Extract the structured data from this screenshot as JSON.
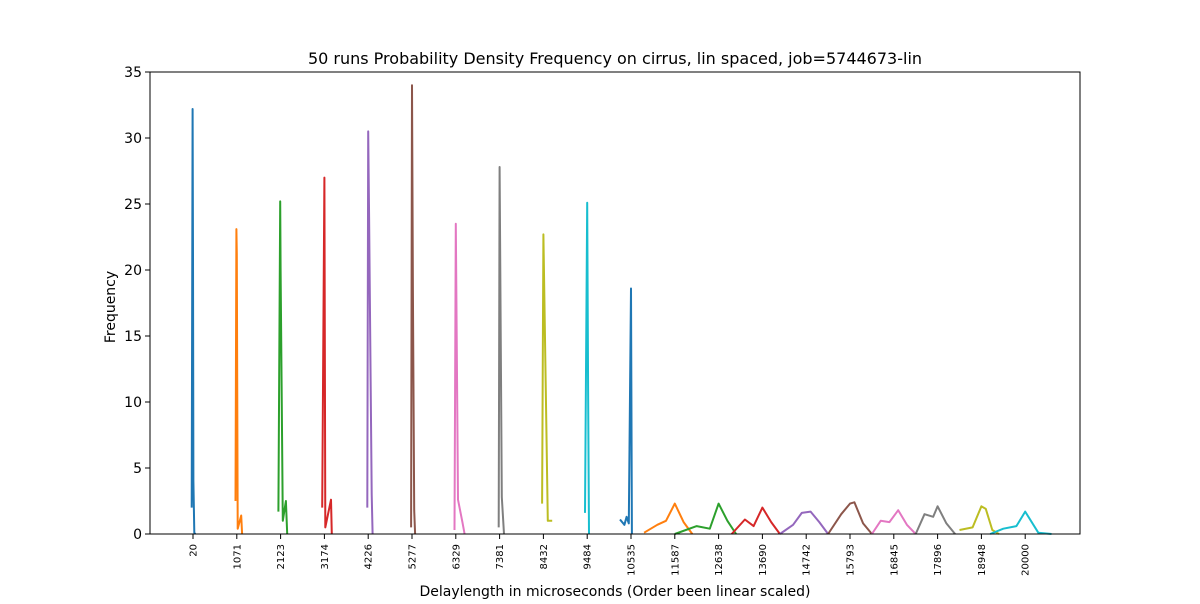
{
  "chart_data": {
    "type": "line",
    "title": "50 runs Probability Density Frequency on cirrus, lin spaced, job=5744673-lin",
    "xlabel": "Delaylength in microseconds (Order been linear scaled)",
    "ylabel": "Frequency",
    "ylim": [
      0,
      35
    ],
    "y_ticks": [
      0,
      5,
      10,
      15,
      20,
      25,
      30,
      35
    ],
    "x_tick_labels": [
      "20",
      "1071",
      "2123",
      "3174",
      "4226",
      "5277",
      "6329",
      "7381",
      "8432",
      "9484",
      "10535",
      "11587",
      "12638",
      "13690",
      "14742",
      "15793",
      "16845",
      "17896",
      "18948",
      "20000"
    ],
    "grid": false,
    "legend": "none",
    "colors": [
      "#1f77b4",
      "#ff7f0e",
      "#2ca02c",
      "#d62728",
      "#9467bd",
      "#8c564b",
      "#e377c2",
      "#7f7f7f",
      "#bcbd22",
      "#17becf"
    ],
    "series": [
      {
        "category": "20",
        "x": [
          -0.03,
          -0.01,
          0.0,
          0.01,
          0.03,
          0.05
        ],
        "y": [
          2.0,
          32.2,
          21.0,
          4.0,
          0.1,
          0.0
        ],
        "color": "#1f77b4"
      },
      {
        "category": "1071",
        "x": [
          -0.03,
          -0.01,
          0.0,
          0.02,
          0.1,
          0.12
        ],
        "y": [
          2.5,
          23.1,
          21.2,
          0.4,
          1.4,
          0.0
        ],
        "color": "#ff7f0e"
      },
      {
        "category": "2123",
        "x": [
          -0.05,
          -0.01,
          0.0,
          0.05,
          0.12,
          0.15
        ],
        "y": [
          1.7,
          25.2,
          20.0,
          1.0,
          2.5,
          0.0
        ],
        "color": "#2ca02c"
      },
      {
        "category": "3174",
        "x": [
          -0.05,
          0.0,
          0.02,
          0.15,
          0.17
        ],
        "y": [
          2.0,
          27.0,
          0.5,
          2.6,
          0.0
        ],
        "color": "#d62728"
      },
      {
        "category": "4226",
        "x": [
          -0.02,
          0.0,
          0.02,
          0.08,
          0.1
        ],
        "y": [
          2.0,
          30.5,
          24.0,
          3.0,
          0.0
        ],
        "color": "#9467bd"
      },
      {
        "category": "5277",
        "x": [
          -0.02,
          0.0,
          0.02,
          0.05,
          0.07
        ],
        "y": [
          0.5,
          34.0,
          18.5,
          1.8,
          0.0
        ],
        "color": "#8c564b"
      },
      {
        "category": "6329",
        "x": [
          -0.03,
          0.0,
          0.05,
          0.15,
          0.2
        ],
        "y": [
          0.3,
          23.5,
          2.6,
          0.9,
          0.0
        ],
        "color": "#e377c2"
      },
      {
        "category": "7381",
        "x": [
          -0.02,
          0.0,
          0.05,
          0.1
        ],
        "y": [
          0.5,
          27.8,
          2.8,
          0.0
        ],
        "color": "#7f7f7f"
      },
      {
        "category": "8432",
        "x": [
          -0.03,
          0.0,
          0.1,
          0.2
        ],
        "y": [
          2.3,
          22.7,
          1.0,
          1.0
        ],
        "color": "#bcbd22"
      },
      {
        "category": "9484",
        "x": [
          -0.05,
          0.0,
          0.02,
          0.04
        ],
        "y": [
          1.6,
          25.1,
          11.0,
          0.0
        ],
        "color": "#17becf"
      },
      {
        "category": "10535",
        "x": [
          -0.25,
          -0.15,
          -0.1,
          -0.05,
          0.0,
          0.02
        ],
        "y": [
          1.1,
          0.7,
          1.3,
          0.8,
          18.6,
          0.0
        ],
        "color": "#1f77b4"
      },
      {
        "category": "11587",
        "x": [
          -0.7,
          -0.4,
          -0.2,
          0.0,
          0.2,
          0.4
        ],
        "y": [
          0.1,
          0.7,
          1.0,
          2.3,
          0.9,
          0.0
        ],
        "color": "#ff7f0e"
      },
      {
        "category": "12638",
        "x": [
          -1.0,
          -0.5,
          -0.2,
          0.0,
          0.2,
          0.4
        ],
        "y": [
          0.0,
          0.6,
          0.4,
          2.3,
          1.0,
          0.0
        ],
        "color": "#2ca02c"
      },
      {
        "category": "13690",
        "x": [
          -0.7,
          -0.4,
          -0.2,
          0.0,
          0.2,
          0.4
        ],
        "y": [
          0.0,
          1.1,
          0.6,
          2.0,
          0.9,
          0.0
        ],
        "color": "#d62728"
      },
      {
        "category": "14742",
        "x": [
          -0.6,
          -0.3,
          -0.1,
          0.1,
          0.3,
          0.5
        ],
        "y": [
          0.0,
          0.7,
          1.6,
          1.7,
          0.9,
          0.0
        ],
        "color": "#9467bd"
      },
      {
        "category": "15793",
        "x": [
          -0.5,
          -0.2,
          0.0,
          0.1,
          0.3,
          0.5
        ],
        "y": [
          0.0,
          1.5,
          2.3,
          2.4,
          0.8,
          0.0
        ],
        "color": "#8c564b"
      },
      {
        "category": "16845",
        "x": [
          -0.5,
          -0.3,
          -0.1,
          0.1,
          0.3,
          0.5
        ],
        "y": [
          0.0,
          1.0,
          0.9,
          1.8,
          0.7,
          0.0
        ],
        "color": "#e377c2"
      },
      {
        "category": "17896",
        "x": [
          -0.5,
          -0.3,
          -0.1,
          0.0,
          0.2,
          0.4
        ],
        "y": [
          0.0,
          1.5,
          1.3,
          2.1,
          0.8,
          0.0
        ],
        "color": "#7f7f7f"
      },
      {
        "category": "18948",
        "x": [
          -0.5,
          -0.2,
          0.0,
          0.1,
          0.25,
          0.4
        ],
        "y": [
          0.3,
          0.5,
          2.1,
          1.9,
          0.3,
          0.0
        ],
        "color": "#bcbd22"
      },
      {
        "category": "20000",
        "x": [
          -0.8,
          -0.5,
          -0.2,
          0.0,
          0.3,
          0.6
        ],
        "y": [
          0.0,
          0.4,
          0.6,
          1.7,
          0.1,
          0.0
        ],
        "color": "#17becf"
      }
    ]
  }
}
